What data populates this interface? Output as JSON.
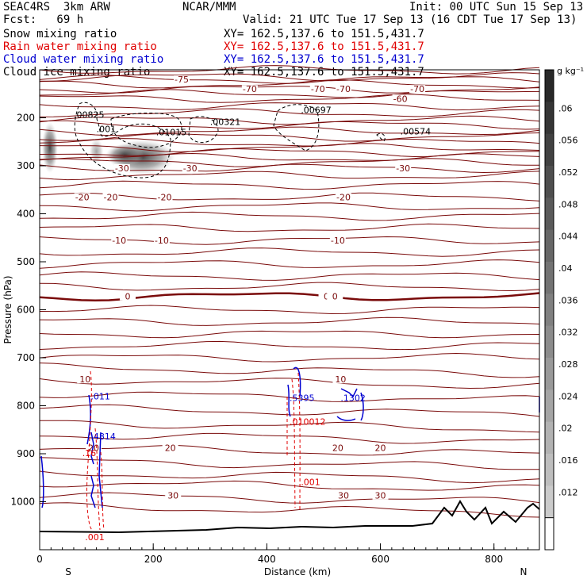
{
  "header": {
    "left1": "SEAC4RS  3km ARW",
    "center1": "NCAR/MMM",
    "right1": "Init: 00 UTC Sun 15 Sep 13",
    "left2": "Fcst:   69 h",
    "right2": "Valid: 21 UTC Tue 17 Sep 13 (16 CDT Tue 17 Sep 13)",
    "rows": [
      {
        "name": "Snow mixing ratio",
        "xy": "XY= 162.5,137.6 to 151.5,431.7",
        "color": "#000000"
      },
      {
        "name": "Rain water mixing ratio",
        "xy": "XY= 162.5,137.6 to 151.5,431.7",
        "color": "#e00000"
      },
      {
        "name": "Cloud water mixing ratio",
        "xy": "XY= 162.5,137.6 to 151.5,431.7",
        "color": "#0000d0"
      },
      {
        "name": "Cloud ice mixing ratio",
        "xy": "XY= 162.5,137.6 to 151.5,431.7",
        "color": "#000000"
      }
    ]
  },
  "chart_data": {
    "type": "cross-section",
    "xlabel": "Distance (km)",
    "ylabel": "Pressure (hPa)",
    "xlim": [
      0,
      880
    ],
    "ylim": [
      1100,
      100
    ],
    "x_ticks": [
      0,
      200,
      400,
      600,
      800
    ],
    "y_ticks": [
      1000,
      900,
      800,
      700,
      600,
      500,
      400,
      300,
      200
    ],
    "endpoints": {
      "left": "S",
      "right": "N"
    },
    "colorbar": {
      "unit": "g kg⁻¹",
      "ticks": [
        ".06",
        ".056",
        ".052",
        ".048",
        ".044",
        ".04",
        ".036",
        ".032",
        ".028",
        ".024",
        ".02",
        ".016",
        ".012"
      ]
    },
    "temperature_contours": [
      {
        "label": "-75",
        "p": 120
      },
      {
        "label": "-70",
        "p": 140
      },
      {
        "label": "-60",
        "p": 160
      },
      {
        "label": "-30",
        "p": 305
      },
      {
        "label": "-20",
        "p": 365
      },
      {
        "label": "-10",
        "p": 455
      },
      {
        "label": "0",
        "p": 572
      },
      {
        "label": "10",
        "p": 745
      },
      {
        "label": "20",
        "p": 888
      },
      {
        "label": "30",
        "p": 987
      }
    ],
    "maxima_labels": [
      {
        "text": ".00825",
        "x": 60,
        "p": 200,
        "color": "#000000"
      },
      {
        "text": ".01015",
        "x": 205,
        "p": 236,
        "color": "#000000"
      },
      {
        "text": ".00321",
        "x": 300,
        "p": 215,
        "color": "#000000"
      },
      {
        "text": ".00697",
        "x": 460,
        "p": 190,
        "color": "#000000"
      },
      {
        "text": ".00574",
        "x": 635,
        "p": 235,
        "color": "#000000"
      },
      {
        "text": ".001",
        "x": 100,
        "p": 230,
        "color": "#000000"
      },
      {
        "text": ".5395",
        "x": 440,
        "p": 790,
        "color": "#0000d0"
      },
      {
        "text": ".1302",
        "x": 530,
        "p": 790,
        "color": "#0000d0"
      },
      {
        "text": ".4814",
        "x": 90,
        "p": 870,
        "color": "#0000d0"
      },
      {
        "text": ".011",
        "x": 90,
        "p": 787,
        "color": "#0000d0"
      },
      {
        "text": ".010012",
        "x": 440,
        "p": 840,
        "color": "#e00000"
      },
      {
        "text": ".16",
        "x": 75,
        "p": 905,
        "color": "#e00000"
      },
      {
        "text": ".001",
        "x": 460,
        "p": 965,
        "color": "#e00000"
      },
      {
        "text": ".001",
        "x": 80,
        "p": 1080,
        "color": "#e00000"
      }
    ]
  }
}
